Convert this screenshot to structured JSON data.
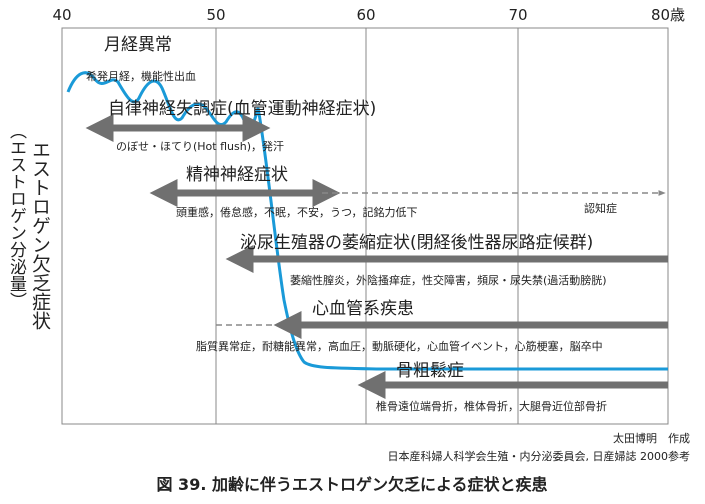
{
  "axis": {
    "ticks": [
      "40",
      "50",
      "60",
      "70",
      "80歳"
    ],
    "ylabel_main": "エストロゲン欠乏症状",
    "ylabel_sub": "（エストロゲン分泌量）"
  },
  "symptoms": [
    {
      "title": "月経異常",
      "detail": "希発月経，機能性出血"
    },
    {
      "title": "自律神経失調症(血管運動神経症状)",
      "detail": "のぼせ・ほてり(Hot flush)，発汗"
    },
    {
      "title": "精神神経症状",
      "detail": "頭重感，倦怠感，不眠，不安，うつ，記銘力低下",
      "dashed_label": "認知症"
    },
    {
      "title": "泌尿生殖器の萎縮症状(閉経後性器尿路症候群)",
      "detail": "萎縮性膣炎，外陰搔痒症，性交障害，頻尿・尿失禁(過活動膀胱)"
    },
    {
      "title": "心血管系疾患",
      "detail": "脂質異常症，耐糖能異常，高血圧，動脈硬化，心血管イベント，心筋梗塞，脳卒中"
    },
    {
      "title": "骨粗鬆症",
      "detail": "椎骨遠位端骨折，椎体骨折，大腿骨近位部骨折"
    }
  ],
  "credit": {
    "author": "太田博明　作成",
    "source": "日本産科婦人科学会生殖・内分泌委員会, 日産婦誌 2000参考"
  },
  "caption": "図 39.  加齢に伴うエストロゲン欠乏による症状と疾患",
  "colors": {
    "curve": "#1a9ad8",
    "arrow": "#707070",
    "grid": "#888888"
  }
}
